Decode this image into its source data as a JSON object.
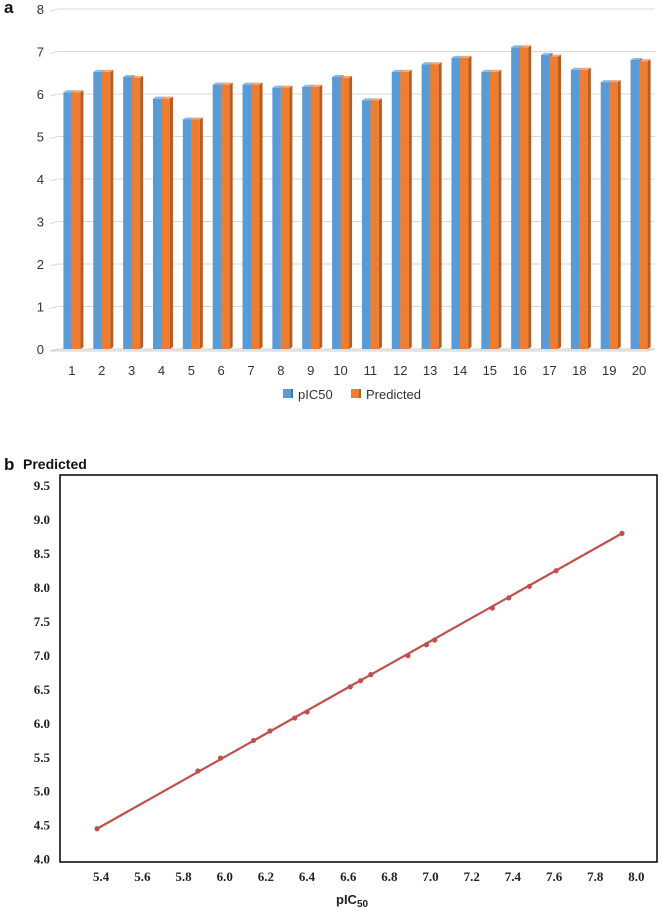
{
  "panel_a_label": "a",
  "panel_b_label": "b",
  "chart_data": [
    {
      "type": "bar",
      "categories": [
        "1",
        "2",
        "3",
        "4",
        "5",
        "6",
        "7",
        "8",
        "9",
        "10",
        "11",
        "12",
        "13",
        "14",
        "15",
        "16",
        "17",
        "18",
        "19",
        "20"
      ],
      "series": [
        {
          "name": "pIC50",
          "values": [
            6.04,
            6.52,
            6.4,
            5.89,
            5.4,
            6.22,
            6.22,
            6.15,
            6.17,
            6.4,
            5.85,
            6.52,
            6.7,
            6.85,
            6.52,
            7.1,
            6.92,
            6.57,
            6.28,
            6.8
          ]
        },
        {
          "name": "Predicted",
          "values": [
            6.04,
            6.52,
            6.38,
            5.89,
            5.4,
            6.22,
            6.22,
            6.15,
            6.17,
            6.38,
            5.85,
            6.52,
            6.7,
            6.85,
            6.52,
            7.1,
            6.88,
            6.57,
            6.28,
            6.77
          ]
        }
      ],
      "ylim": [
        0,
        8
      ],
      "yticks": [
        "0",
        "1",
        "2",
        "3",
        "4",
        "5",
        "6",
        "7",
        "8"
      ],
      "grid": true,
      "legend_position": "bottom",
      "colors": {
        "pIC50": "#5b9bd5",
        "Predicted": "#ed7d31"
      }
    },
    {
      "type": "scatter",
      "title": "Predicted",
      "xlabel_main": "pIC",
      "xlabel_sub": "50",
      "x": [
        5.38,
        5.87,
        5.98,
        6.14,
        6.22,
        6.34,
        6.4,
        6.61,
        6.66,
        6.71,
        6.89,
        6.98,
        7.02,
        7.3,
        7.38,
        7.48,
        7.61,
        7.93
      ],
      "y": [
        4.44,
        5.29,
        5.48,
        5.74,
        5.88,
        6.07,
        6.16,
        6.53,
        6.62,
        6.71,
        6.99,
        7.15,
        7.22,
        7.69,
        7.84,
        8.01,
        8.24,
        8.79
      ],
      "xlim": [
        5.2,
        8.1
      ],
      "ylim": [
        3.95,
        9.65
      ],
      "xticks": [
        "5.4",
        "5.6",
        "5.8",
        "6.0",
        "6.2",
        "6.4",
        "6.6",
        "6.8",
        "7.0",
        "7.2",
        "7.4",
        "7.6",
        "7.8",
        "8.0"
      ],
      "yticks": [
        "4.0",
        "4.5",
        "5.0",
        "5.5",
        "6.0",
        "6.5",
        "7.0",
        "7.5",
        "8.0",
        "8.5",
        "9.0",
        "9.5"
      ],
      "grid": false,
      "colors": {
        "line": "#c0504d",
        "marker": "#c0504d"
      }
    }
  ]
}
